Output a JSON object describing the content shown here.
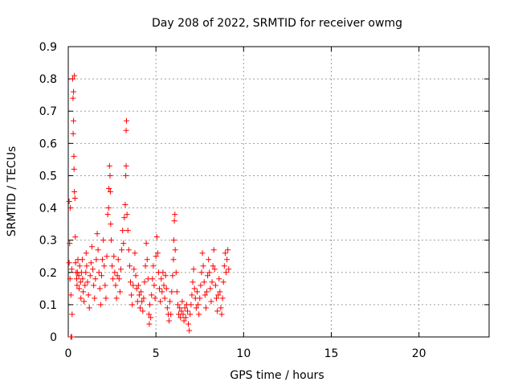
{
  "chart_data": {
    "type": "scatter",
    "title": "Day 208 of 2022, SRMTID for receiver owmg",
    "xlabel": "GPS time / hours",
    "ylabel": "SRMTID / TECUs",
    "xlim": [
      0,
      24
    ],
    "ylim": [
      0,
      0.9
    ],
    "x_ticks": [
      0,
      5,
      10,
      15,
      20
    ],
    "x_tick_labels": [
      "0",
      "5",
      "10",
      "15",
      "20"
    ],
    "y_ticks": [
      0,
      0.1,
      0.2,
      0.3,
      0.4,
      0.5,
      0.6,
      0.7,
      0.8,
      0.9
    ],
    "y_tick_labels": [
      "0",
      "0.1",
      "0.2",
      "0.3",
      "0.4",
      "0.5",
      "0.6",
      "0.7",
      "0.8",
      "0.9"
    ],
    "grid": true,
    "marker": "+",
    "color": "#ff0000",
    "series": [
      {
        "name": "owmg",
        "points": [
          [
            0.05,
            0.42
          ],
          [
            0.05,
            0.23
          ],
          [
            0.08,
            0.29
          ],
          [
            0.1,
            0.18
          ],
          [
            0.12,
            0.4
          ],
          [
            0.15,
            0.0
          ],
          [
            0.15,
            0.13
          ],
          [
            0.2,
            0.0
          ],
          [
            0.2,
            0.21
          ],
          [
            0.22,
            0.07
          ],
          [
            0.25,
            0.8
          ],
          [
            0.27,
            0.74
          ],
          [
            0.28,
            0.63
          ],
          [
            0.3,
            0.76
          ],
          [
            0.3,
            0.67
          ],
          [
            0.32,
            0.56
          ],
          [
            0.33,
            0.52
          ],
          [
            0.35,
            0.81
          ],
          [
            0.35,
            0.45
          ],
          [
            0.38,
            0.43
          ],
          [
            0.4,
            0.31
          ],
          [
            0.42,
            0.23
          ],
          [
            0.45,
            0.2
          ],
          [
            0.48,
            0.18
          ],
          [
            0.5,
            0.16
          ],
          [
            0.52,
            0.2
          ],
          [
            0.55,
            0.24
          ],
          [
            0.6,
            0.19
          ],
          [
            0.62,
            0.15
          ],
          [
            0.65,
            0.22
          ],
          [
            0.7,
            0.17
          ],
          [
            0.72,
            0.12
          ],
          [
            0.75,
            0.2
          ],
          [
            0.8,
            0.24
          ],
          [
            0.82,
            0.18
          ],
          [
            0.85,
            0.14
          ],
          [
            0.9,
            0.11
          ],
          [
            0.95,
            0.16
          ],
          [
            1.0,
            0.2
          ],
          [
            1.02,
            0.26
          ],
          [
            1.05,
            0.22
          ],
          [
            1.1,
            0.17
          ],
          [
            1.15,
            0.13
          ],
          [
            1.2,
            0.09
          ],
          [
            1.25,
            0.19
          ],
          [
            1.3,
            0.23
          ],
          [
            1.35,
            0.28
          ],
          [
            1.4,
            0.21
          ],
          [
            1.45,
            0.16
          ],
          [
            1.5,
            0.12
          ],
          [
            1.55,
            0.18
          ],
          [
            1.6,
            0.24
          ],
          [
            1.65,
            0.32
          ],
          [
            1.7,
            0.27
          ],
          [
            1.75,
            0.2
          ],
          [
            1.8,
            0.15
          ],
          [
            1.85,
            0.1
          ],
          [
            1.9,
            0.19
          ],
          [
            1.95,
            0.24
          ],
          [
            2.0,
            0.3
          ],
          [
            2.05,
            0.22
          ],
          [
            2.1,
            0.16
          ],
          [
            2.15,
            0.12
          ],
          [
            2.2,
            0.25
          ],
          [
            2.25,
            0.38
          ],
          [
            2.3,
            0.4
          ],
          [
            2.32,
            0.46
          ],
          [
            2.35,
            0.53
          ],
          [
            2.38,
            0.5
          ],
          [
            2.4,
            0.45
          ],
          [
            2.42,
            0.35
          ],
          [
            2.45,
            0.3
          ],
          [
            2.5,
            0.22
          ],
          [
            2.55,
            0.18
          ],
          [
            2.6,
            0.25
          ],
          [
            2.65,
            0.2
          ],
          [
            2.7,
            0.16
          ],
          [
            2.75,
            0.12
          ],
          [
            2.8,
            0.19
          ],
          [
            2.85,
            0.24
          ],
          [
            2.9,
            0.18
          ],
          [
            2.95,
            0.14
          ],
          [
            3.0,
            0.21
          ],
          [
            3.05,
            0.27
          ],
          [
            3.1,
            0.33
          ],
          [
            3.15,
            0.29
          ],
          [
            3.2,
            0.37
          ],
          [
            3.25,
            0.41
          ],
          [
            3.28,
            0.5
          ],
          [
            3.3,
            0.53
          ],
          [
            3.3,
            0.64
          ],
          [
            3.32,
            0.67
          ],
          [
            3.35,
            0.38
          ],
          [
            3.4,
            0.33
          ],
          [
            3.45,
            0.27
          ],
          [
            3.5,
            0.22
          ],
          [
            3.55,
            0.17
          ],
          [
            3.6,
            0.13
          ],
          [
            3.65,
            0.1
          ],
          [
            3.7,
            0.16
          ],
          [
            3.75,
            0.21
          ],
          [
            3.8,
            0.26
          ],
          [
            3.85,
            0.19
          ],
          [
            3.9,
            0.15
          ],
          [
            3.95,
            0.11
          ],
          [
            4.0,
            0.16
          ],
          [
            4.05,
            0.13
          ],
          [
            4.1,
            0.09
          ],
          [
            4.15,
            0.14
          ],
          [
            4.2,
            0.11
          ],
          [
            4.25,
            0.08
          ],
          [
            4.3,
            0.12
          ],
          [
            4.35,
            0.17
          ],
          [
            4.4,
            0.22
          ],
          [
            4.45,
            0.29
          ],
          [
            4.5,
            0.24
          ],
          [
            4.55,
            0.18
          ],
          [
            4.6,
            0.07
          ],
          [
            4.62,
            0.04
          ],
          [
            4.65,
            0.1
          ],
          [
            4.7,
            0.06
          ],
          [
            4.75,
            0.13
          ],
          [
            4.8,
            0.18
          ],
          [
            4.85,
            0.22
          ],
          [
            4.9,
            0.16
          ],
          [
            4.95,
            0.12
          ],
          [
            5.0,
            0.25
          ],
          [
            5.05,
            0.31
          ],
          [
            5.1,
            0.26
          ],
          [
            5.15,
            0.2
          ],
          [
            5.2,
            0.15
          ],
          [
            5.25,
            0.11
          ],
          [
            5.3,
            0.18
          ],
          [
            5.35,
            0.14
          ],
          [
            5.4,
            0.2
          ],
          [
            5.45,
            0.16
          ],
          [
            5.5,
            0.12
          ],
          [
            5.55,
            0.19
          ],
          [
            5.6,
            0.15
          ],
          [
            5.65,
            0.09
          ],
          [
            5.7,
            0.07
          ],
          [
            5.75,
            0.05
          ],
          [
            5.8,
            0.11
          ],
          [
            5.85,
            0.07
          ],
          [
            5.9,
            0.14
          ],
          [
            5.95,
            0.19
          ],
          [
            6.0,
            0.24
          ],
          [
            6.02,
            0.3
          ],
          [
            6.05,
            0.36
          ],
          [
            6.08,
            0.38
          ],
          [
            6.1,
            0.27
          ],
          [
            6.15,
            0.2
          ],
          [
            6.2,
            0.14
          ],
          [
            6.25,
            0.1
          ],
          [
            6.3,
            0.07
          ],
          [
            6.35,
            0.09
          ],
          [
            6.4,
            0.06
          ],
          [
            6.45,
            0.08
          ],
          [
            6.5,
            0.11
          ],
          [
            6.55,
            0.07
          ],
          [
            6.6,
            0.05
          ],
          [
            6.65,
            0.09
          ],
          [
            6.7,
            0.06
          ],
          [
            6.75,
            0.1
          ],
          [
            6.8,
            0.08
          ],
          [
            6.85,
            0.04
          ],
          [
            6.9,
            0.02
          ],
          [
            6.95,
            0.07
          ],
          [
            7.0,
            0.1
          ],
          [
            7.05,
            0.13
          ],
          [
            7.1,
            0.17
          ],
          [
            7.15,
            0.21
          ],
          [
            7.2,
            0.15
          ],
          [
            7.25,
            0.12
          ],
          [
            7.3,
            0.09
          ],
          [
            7.35,
            0.14
          ],
          [
            7.4,
            0.1
          ],
          [
            7.45,
            0.07
          ],
          [
            7.5,
            0.12
          ],
          [
            7.55,
            0.16
          ],
          [
            7.6,
            0.2
          ],
          [
            7.65,
            0.26
          ],
          [
            7.7,
            0.22
          ],
          [
            7.75,
            0.17
          ],
          [
            7.8,
            0.13
          ],
          [
            7.85,
            0.09
          ],
          [
            7.9,
            0.14
          ],
          [
            7.95,
            0.19
          ],
          [
            8.0,
            0.24
          ],
          [
            8.05,
            0.2
          ],
          [
            8.1,
            0.15
          ],
          [
            8.15,
            0.11
          ],
          [
            8.2,
            0.17
          ],
          [
            8.25,
            0.22
          ],
          [
            8.3,
            0.27
          ],
          [
            8.35,
            0.21
          ],
          [
            8.4,
            0.16
          ],
          [
            8.45,
            0.12
          ],
          [
            8.5,
            0.08
          ],
          [
            8.55,
            0.13
          ],
          [
            8.6,
            0.18
          ],
          [
            8.65,
            0.14
          ],
          [
            8.7,
            0.09
          ],
          [
            8.75,
            0.07
          ],
          [
            8.8,
            0.12
          ],
          [
            8.85,
            0.17
          ],
          [
            8.9,
            0.22
          ],
          [
            8.95,
            0.26
          ],
          [
            9.0,
            0.2
          ],
          [
            9.05,
            0.24
          ],
          [
            9.1,
            0.27
          ],
          [
            9.15,
            0.21
          ]
        ]
      }
    ]
  }
}
